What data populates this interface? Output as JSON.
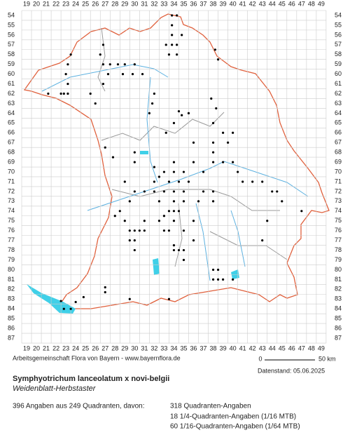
{
  "map": {
    "columns": [
      19,
      20,
      21,
      22,
      23,
      24,
      25,
      26,
      27,
      28,
      29,
      30,
      31,
      32,
      33,
      34,
      35,
      36,
      37,
      38,
      39,
      40,
      41,
      42,
      43,
      44,
      45,
      46,
      47,
      48,
      49
    ],
    "rows": [
      54,
      55,
      56,
      57,
      58,
      59,
      60,
      61,
      62,
      63,
      64,
      65,
      66,
      67,
      68,
      69,
      70,
      71,
      72,
      73,
      74,
      75,
      76,
      77,
      78,
      79,
      80,
      81,
      82,
      83,
      84,
      85,
      86,
      87
    ],
    "occurrences": [
      [
        33.8,
        54
      ],
      [
        34.3,
        54
      ],
      [
        33.8,
        55
      ],
      [
        33.8,
        56
      ],
      [
        34.8,
        56
      ],
      [
        33.2,
        57
      ],
      [
        33.8,
        57
      ],
      [
        34.3,
        57
      ],
      [
        33.5,
        58
      ],
      [
        34.3,
        58
      ],
      [
        38.2,
        57.5
      ],
      [
        38.5,
        58.5
      ],
      [
        23.5,
        58
      ],
      [
        26.8,
        57
      ],
      [
        26.5,
        58
      ],
      [
        23.2,
        59
      ],
      [
        26.8,
        59
      ],
      [
        27.5,
        59
      ],
      [
        28.3,
        59
      ],
      [
        29,
        59
      ],
      [
        30,
        59
      ],
      [
        28.8,
        60
      ],
      [
        29.8,
        60
      ],
      [
        30.8,
        60
      ],
      [
        27.3,
        60
      ],
      [
        26.8,
        61
      ],
      [
        23,
        60
      ],
      [
        23.2,
        61
      ],
      [
        22.5,
        62
      ],
      [
        22.8,
        62
      ],
      [
        23.2,
        62
      ],
      [
        21.2,
        62
      ],
      [
        25.5,
        62
      ],
      [
        26,
        63
      ],
      [
        31.8,
        63
      ],
      [
        32,
        62
      ],
      [
        31.5,
        64
      ],
      [
        37.8,
        62.5
      ],
      [
        38.3,
        63.5
      ],
      [
        34.5,
        63.8
      ],
      [
        34.8,
        64.2
      ],
      [
        35.5,
        64
      ],
      [
        34,
        65
      ],
      [
        33.2,
        66
      ],
      [
        38,
        65
      ],
      [
        39,
        66
      ],
      [
        40,
        66
      ],
      [
        39.5,
        67
      ],
      [
        38,
        67
      ],
      [
        38,
        68
      ],
      [
        36,
        67
      ],
      [
        27,
        67.5
      ],
      [
        27.8,
        68.5
      ],
      [
        30,
        68
      ],
      [
        30,
        69
      ],
      [
        32,
        69.5
      ],
      [
        33,
        70
      ],
      [
        34,
        69
      ],
      [
        34,
        70
      ],
      [
        33.5,
        71
      ],
      [
        34.5,
        71
      ],
      [
        35,
        70
      ],
      [
        35.5,
        71
      ],
      [
        36,
        69
      ],
      [
        37,
        70
      ],
      [
        38,
        69
      ],
      [
        39,
        69
      ],
      [
        40,
        69
      ],
      [
        40.5,
        70
      ],
      [
        41,
        71
      ],
      [
        42,
        71
      ],
      [
        43,
        71
      ],
      [
        44,
        72
      ],
      [
        44.5,
        72
      ],
      [
        45,
        73
      ],
      [
        47,
        74
      ],
      [
        43.5,
        75
      ],
      [
        43,
        77
      ],
      [
        32,
        71
      ],
      [
        32,
        72
      ],
      [
        33,
        72
      ],
      [
        34,
        72
      ],
      [
        35,
        72
      ],
      [
        31,
        72
      ],
      [
        30,
        72
      ],
      [
        29,
        71
      ],
      [
        29.5,
        73
      ],
      [
        28.5,
        74
      ],
      [
        28,
        74.5
      ],
      [
        29,
        75
      ],
      [
        29.5,
        76
      ],
      [
        30,
        76
      ],
      [
        30.5,
        76
      ],
      [
        29.5,
        77
      ],
      [
        30,
        77
      ],
      [
        30,
        78
      ],
      [
        31,
        76
      ],
      [
        31,
        75
      ],
      [
        32.5,
        75
      ],
      [
        33,
        74.5
      ],
      [
        33.5,
        74
      ],
      [
        34,
        74
      ],
      [
        34.5,
        74
      ],
      [
        35,
        73
      ],
      [
        33,
        76
      ],
      [
        33.5,
        76
      ],
      [
        34,
        77.5
      ],
      [
        34,
        78
      ],
      [
        34.5,
        78
      ],
      [
        35,
        78
      ],
      [
        36,
        77
      ],
      [
        35,
        79
      ],
      [
        38,
        80
      ],
      [
        38.5,
        80
      ],
      [
        38,
        81
      ],
      [
        38.5,
        81
      ],
      [
        39,
        81
      ],
      [
        40,
        81
      ],
      [
        27,
        81.8
      ],
      [
        27,
        82.3
      ],
      [
        29.5,
        83
      ],
      [
        33.5,
        83
      ],
      [
        24.8,
        82.8
      ],
      [
        24,
        83.3
      ],
      [
        23.5,
        84
      ],
      [
        22.8,
        84
      ],
      [
        22.5,
        83.2
      ],
      [
        32.5,
        73
      ],
      [
        36.5,
        73
      ],
      [
        37,
        72
      ],
      [
        38,
        72
      ],
      [
        38,
        73
      ],
      [
        36,
        75
      ],
      [
        35,
        76
      ],
      [
        34,
        75
      ],
      [
        34,
        73
      ],
      [
        32.5,
        70.5
      ]
    ],
    "credit": "Arbeitsgemeinschaft Flora von Bayern - www.bayernflora.de",
    "date": "Datenstand: 05.06.2025",
    "scale_start": "0",
    "scale_end": "50 km",
    "title": "Symphyotrichum lanceolatum x novi-belgii",
    "subtitle": "Weidenblatt-Herbstaster",
    "summary": "396 Angaben aus 249 Quadranten, davon:",
    "breakdown": [
      "318 Quadranten-Angaben",
      "18 1/4-Quadranten-Angaben (1/16 MTB)",
      "60 1/16-Quadranten-Angaben (1/64 MTB)"
    ]
  }
}
